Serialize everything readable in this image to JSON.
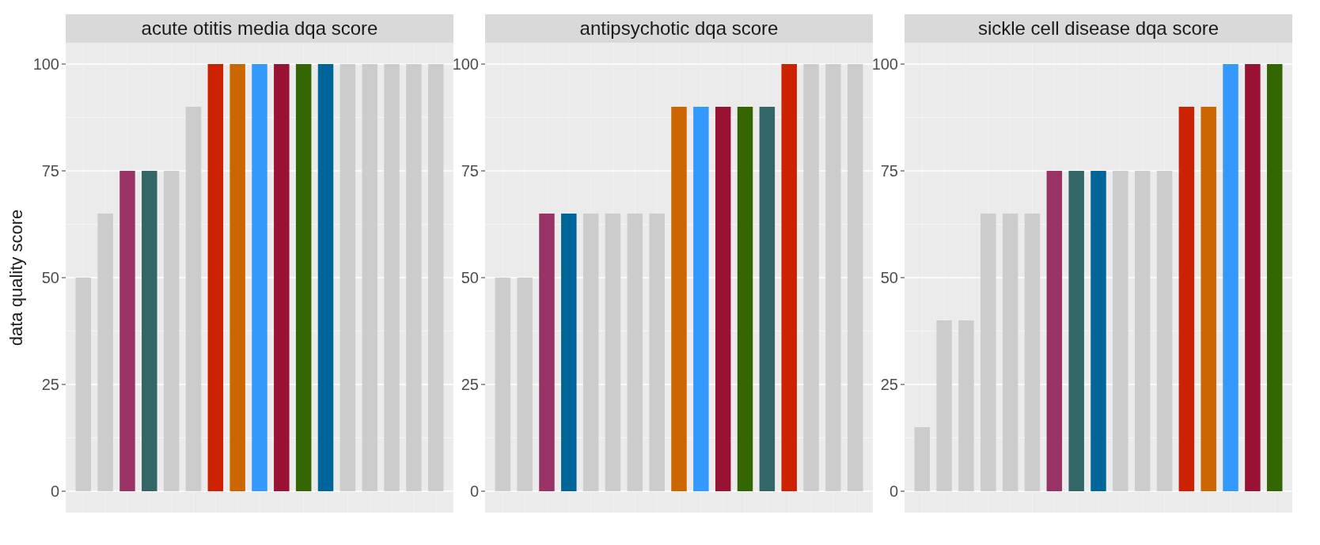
{
  "chart_data": [
    {
      "type": "bar",
      "title": "acute otitis media dqa score",
      "ylabel": "data quality score",
      "categories": [
        null,
        null,
        null,
        null,
        null,
        null,
        null,
        null,
        null,
        null,
        null,
        null,
        null,
        null,
        null,
        null,
        null
      ],
      "values": [
        50,
        65,
        75,
        75,
        75,
        90,
        100,
        100,
        100,
        100,
        100,
        100,
        100,
        100,
        100,
        100,
        100
      ],
      "colors": [
        "#cccccc",
        "#cccccc",
        "#993366",
        "#336666",
        "#cccccc",
        "#cccccc",
        "#cc2200",
        "#cc6600",
        "#3399ff",
        "#991133",
        "#336600",
        "#006699",
        "#cccccc",
        "#cccccc",
        "#cccccc",
        "#cccccc",
        "#cccccc"
      ],
      "ylim": [
        -5,
        105
      ],
      "yticks": [
        0,
        25,
        50,
        75,
        100
      ],
      "grid": true,
      "tick_labels": "y"
    },
    {
      "type": "bar",
      "title": "antipsychotic dqa score",
      "categories": [
        null,
        null,
        null,
        null,
        null,
        null,
        null,
        null,
        null,
        null,
        null,
        null,
        null,
        null,
        null,
        null,
        null
      ],
      "values": [
        50,
        50,
        65,
        65,
        65,
        65,
        65,
        65,
        90,
        90,
        90,
        90,
        90,
        100,
        100,
        100,
        100
      ],
      "colors": [
        "#cccccc",
        "#cccccc",
        "#993366",
        "#006699",
        "#cccccc",
        "#cccccc",
        "#cccccc",
        "#cccccc",
        "#cc6600",
        "#3399ff",
        "#991133",
        "#336600",
        "#336666",
        "#cc2200",
        "#cccccc",
        "#cccccc",
        "#cccccc"
      ],
      "ylim": [
        -5,
        105
      ],
      "yticks": [
        0,
        25,
        50,
        75,
        100
      ],
      "grid": true,
      "tick_labels": "y"
    },
    {
      "type": "bar",
      "title": "sickle cell disease dqa score",
      "categories": [
        null,
        null,
        null,
        null,
        null,
        null,
        null,
        null,
        null,
        null,
        null,
        null,
        null,
        null,
        null,
        null,
        null
      ],
      "values": [
        15,
        40,
        40,
        65,
        65,
        65,
        75,
        75,
        75,
        75,
        75,
        75,
        90,
        90,
        100,
        100,
        100
      ],
      "colors": [
        "#cccccc",
        "#cccccc",
        "#cccccc",
        "#cccccc",
        "#cccccc",
        "#cccccc",
        "#993366",
        "#336666",
        "#006699",
        "#cccccc",
        "#cccccc",
        "#cccccc",
        "#cc2200",
        "#cc6600",
        "#3399ff",
        "#991133",
        "#336600"
      ],
      "ylim": [
        -5,
        105
      ],
      "yticks": [
        0,
        25,
        50,
        75,
        100
      ],
      "grid": true,
      "tick_labels": "y"
    }
  ]
}
